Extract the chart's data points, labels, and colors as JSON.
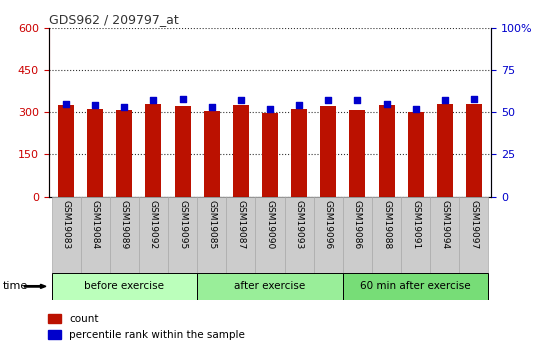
{
  "title": "GDS962 / 209797_at",
  "samples": [
    "GSM19083",
    "GSM19084",
    "GSM19089",
    "GSM19092",
    "GSM19095",
    "GSM19085",
    "GSM19087",
    "GSM19090",
    "GSM19093",
    "GSM19096",
    "GSM19086",
    "GSM19088",
    "GSM19091",
    "GSM19094",
    "GSM19097"
  ],
  "counts": [
    325,
    312,
    308,
    330,
    322,
    305,
    325,
    297,
    312,
    320,
    308,
    325,
    300,
    330,
    330
  ],
  "percentile_ranks": [
    55,
    54,
    53,
    57,
    58,
    53,
    57,
    52,
    54,
    57,
    57,
    55,
    52,
    57,
    58
  ],
  "groups": [
    {
      "label": "before exercise",
      "start": 0,
      "end": 5,
      "color": "#bbffbb"
    },
    {
      "label": "after exercise",
      "start": 5,
      "end": 10,
      "color": "#99ee99"
    },
    {
      "label": "60 min after exercise",
      "start": 10,
      "end": 15,
      "color": "#77dd77"
    }
  ],
  "ylim_left": [
    0,
    600
  ],
  "ylim_right": [
    0,
    100
  ],
  "yticks_left": [
    0,
    150,
    300,
    450,
    600
  ],
  "yticks_right": [
    0,
    25,
    50,
    75,
    100
  ],
  "bar_color": "#bb1100",
  "dot_color": "#0000cc",
  "left_axis_color": "#cc0000",
  "right_axis_color": "#0000cc",
  "tick_label_bg": "#cccccc",
  "bar_width": 0.55,
  "figsize": [
    5.4,
    3.45
  ],
  "dpi": 100
}
